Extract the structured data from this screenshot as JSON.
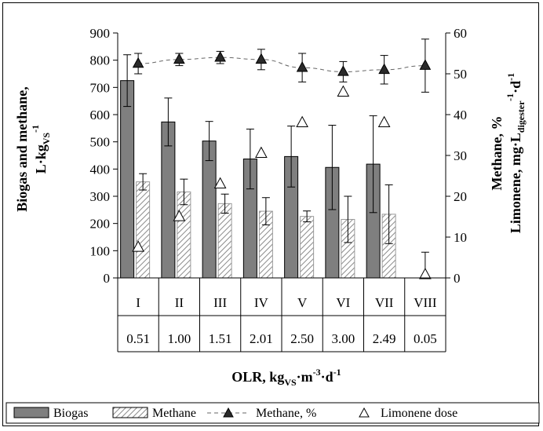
{
  "chart_data": {
    "type": "bar",
    "categories": [
      "I",
      "II",
      "III",
      "IV",
      "V",
      "VI",
      "VII",
      "VIII"
    ],
    "olr_values": [
      "0.51",
      "1.00",
      "1.51",
      "2.01",
      "2.50",
      "3.00",
      "2.49",
      "0.05"
    ],
    "series": [
      {
        "name": "Biogas",
        "axis": "left",
        "kind": "bar",
        "color": "#7f7f7f",
        "values": [
          725,
          573,
          503,
          437,
          446,
          406,
          418,
          null
        ],
        "errors": [
          95,
          88,
          72,
          110,
          112,
          155,
          178,
          null
        ]
      },
      {
        "name": "Methane",
        "axis": "left",
        "kind": "bar-hatched",
        "color": "#b0b0b0",
        "values": [
          353,
          316,
          273,
          245,
          226,
          215,
          234,
          null
        ],
        "errors": [
          30,
          47,
          35,
          50,
          20,
          85,
          108,
          null
        ]
      },
      {
        "name": "Methane, %",
        "axis": "right",
        "kind": "line-triangle-filled",
        "color": "#404040",
        "values": [
          52.5,
          53.5,
          54.0,
          53.5,
          51.5,
          50.5,
          51.0,
          52.0
        ],
        "errors": [
          2.5,
          1.5,
          1.5,
          2.5,
          3.5,
          2.5,
          3.5,
          6.5
        ]
      },
      {
        "name": "Limonene dose",
        "axis": "right",
        "kind": "marker-triangle-open",
        "color": "#000000",
        "values": [
          7.5,
          15.0,
          23.0,
          30.5,
          38.0,
          45.5,
          38.0,
          0.8
        ],
        "errors": [
          null,
          null,
          null,
          null,
          null,
          null,
          null,
          5.5
        ]
      }
    ],
    "ylim_left": [
      0,
      900
    ],
    "yticks_left": [
      "0",
      "100",
      "200",
      "300",
      "400",
      "500",
      "600",
      "700",
      "800",
      "900"
    ],
    "ylim_right": [
      0,
      60
    ],
    "yticks_right": [
      "0",
      "10",
      "20",
      "30",
      "40",
      "50",
      "60"
    ],
    "ylabel_left": {
      "line1": "Biogas and methane,",
      "line2_main": "L·kg",
      "line2_sub": "VS",
      "line2_sup": "-1"
    },
    "ylabel_right": {
      "line1": "Methane, %",
      "line2_main": "Limonene, mg·L",
      "line2_sub": "digester",
      "line2_sup1": "-1",
      "line2_mid": "·d",
      "line2_sup2": "-1"
    },
    "xlabel": {
      "main": "OLR, kg",
      "sub": "VS",
      "mid1": "·m",
      "sup1": "-3",
      "mid2": "·d",
      "sup2": "-1"
    },
    "grid": false,
    "legend_position": "bottom"
  }
}
